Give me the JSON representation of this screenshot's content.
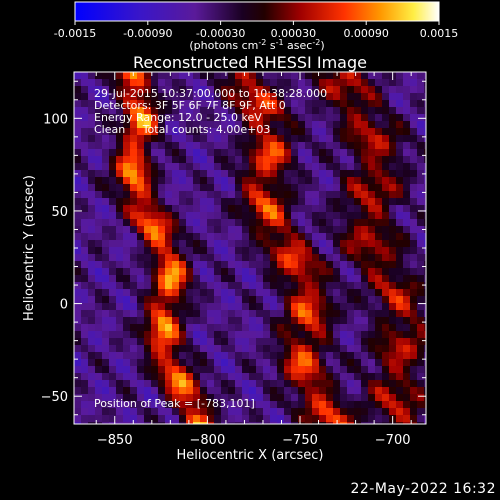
{
  "colorbar": {
    "ticks": [
      "-0.0015",
      "-0.00090",
      "-0.00030",
      "0.00030",
      "0.00090",
      "0.0015"
    ],
    "unit_label": "(photons cm",
    "unit_sup1": "-2",
    "unit_mid": " s",
    "unit_sup2": "-1",
    "unit_end": " asec",
    "unit_sup3": "-2",
    "unit_close": ")",
    "range": [
      -0.0015,
      0.0015
    ]
  },
  "annotations": {
    "time_range": "29-Jul-2015 10:37:00.000 to 10:38:28.000",
    "detectors": "Detectors: 3F 5F 6F 7F 8F 9F, Att 0",
    "energy": "Energy Range: 12.0 - 25.0 keV",
    "algorithm": "Clean     Total counts: 4.00e+03",
    "peak": "Position of Peak = [-783,101]"
  },
  "footer": {
    "timestamp": "22-May-2022 16:32"
  },
  "chart_data": {
    "type": "heatmap",
    "title": "Reconstructed RHESSI Image",
    "xlabel": "Heliocentric X (arcsec)",
    "ylabel": "Heliocentric Y (arcsec)",
    "xlim": [
      -872,
      -682
    ],
    "ylim": [
      -65,
      125
    ],
    "xticks": [
      -850,
      -800,
      -750,
      -700
    ],
    "yticks": [
      -50,
      0,
      50,
      100
    ],
    "xtick_labels": [
      "−850",
      "−800",
      "−750",
      "−700"
    ],
    "ytick_labels": [
      "−50",
      "0",
      "50",
      "100"
    ],
    "colormap": "red-temperature (blue negatives, black/purple zero, red-yellow-white positives)",
    "ridges": [
      {
        "x_top": -845,
        "x_bottom": -810,
        "peak": 0.0015
      },
      {
        "x_top": -780,
        "x_bottom": -735,
        "peak": 0.0012
      },
      {
        "x_top": -722,
        "x_bottom": -690,
        "peak": 0.0009
      }
    ],
    "peak_position": [
      -783,
      101
    ]
  }
}
